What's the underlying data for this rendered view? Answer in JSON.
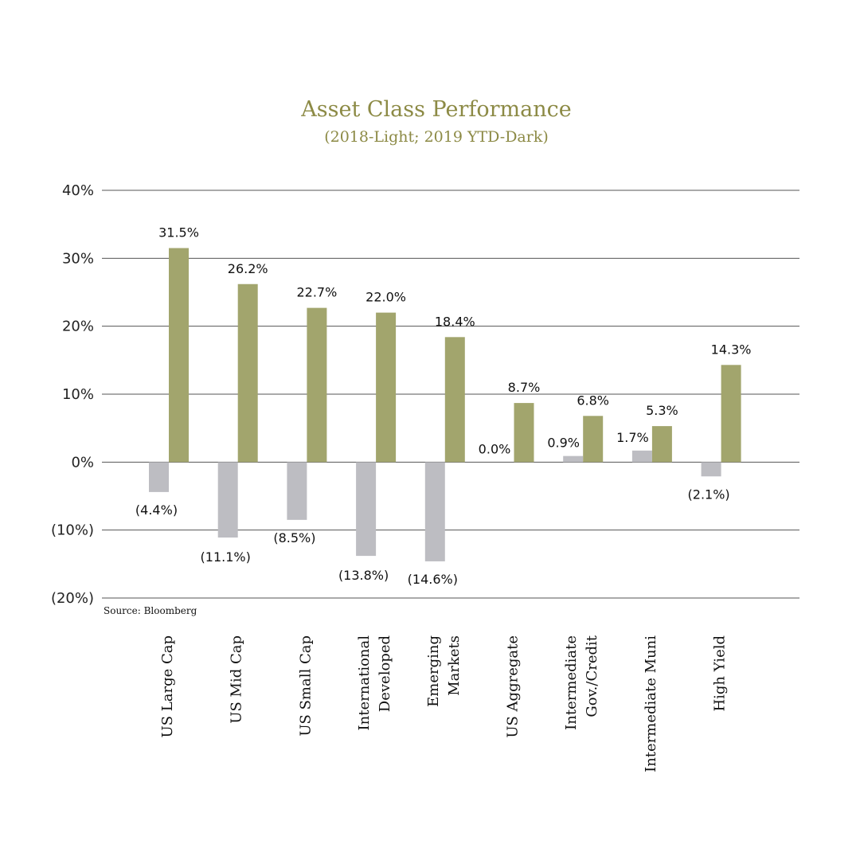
{
  "chart_data": {
    "type": "bar",
    "title": "Asset Class Performance",
    "subtitle": "(2018-Light; 2019 YTD-Dark)",
    "categories": [
      [
        "US Large Cap"
      ],
      [
        "US Mid Cap"
      ],
      [
        "US Small Cap"
      ],
      [
        "International",
        "Developed"
      ],
      [
        "Emerging",
        "Markets"
      ],
      [
        "US Aggregate"
      ],
      [
        "Intermediate",
        "Gov./Credit"
      ],
      [
        "Intermediate Muni"
      ],
      [
        "High Yield"
      ]
    ],
    "series": [
      {
        "values": [
          -4.4,
          -11.1,
          -8.5,
          -13.8,
          -14.6,
          0.0,
          0.9,
          1.7,
          -2.1
        ],
        "labels": [
          "(4.4%)",
          "(11.1%)",
          "(8.5%)",
          "(13.8%)",
          "(14.6%)",
          "0.0%",
          "0.9%",
          "1.7%",
          "(2.1%)"
        ],
        "color": "#bdbdc2"
      },
      {
        "values": [
          31.5,
          26.2,
          22.7,
          22.0,
          18.4,
          8.7,
          6.8,
          5.3,
          14.3
        ],
        "labels": [
          "31.5%",
          "26.2%",
          "22.7%",
          "22.0%",
          "18.4%",
          "8.7%",
          "6.8%",
          "5.3%",
          "14.3%"
        ],
        "color": "#a2a56d"
      }
    ],
    "yticks": [
      40,
      30,
      20,
      10,
      0,
      -10,
      -20
    ],
    "ytick_labels": [
      "40%",
      "30%",
      "20%",
      "10%",
      "0%",
      "(10%)",
      "(20%)"
    ],
    "ylim": [
      -20,
      40
    ],
    "grid": true,
    "source_note": "Source: Bloomberg",
    "colors": {
      "title": "#8c8a45",
      "gridline": "#555555"
    }
  }
}
